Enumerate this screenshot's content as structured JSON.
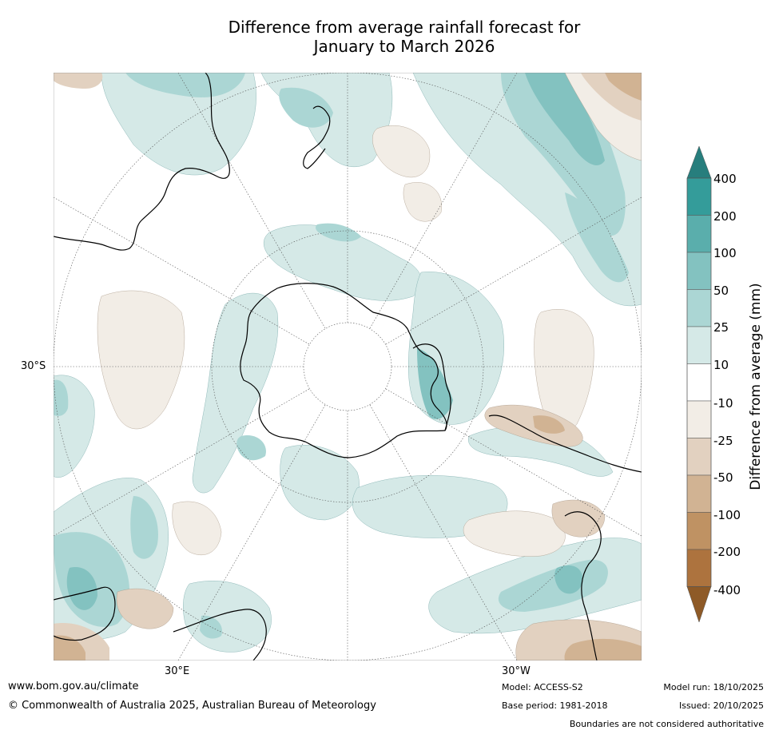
{
  "title": {
    "line1": "Difference from average rainfall forecast for",
    "line2": "January to March 2026"
  },
  "map": {
    "lat_label": "30°S",
    "lon_labels": [
      "30°E",
      "30°W"
    ]
  },
  "colorbar": {
    "label": "Difference from average (mm)",
    "ticks": [
      "400",
      "200",
      "100",
      "50",
      "25",
      "10",
      "-10",
      "-25",
      "-50",
      "-100",
      "-200",
      "-400"
    ],
    "colors": {
      "over_400": "#277e7d",
      "b200_400": "#349c9a",
      "b100_200": "#5aaeac",
      "b50_100": "#83c2c0",
      "b25_50": "#abd6d4",
      "b10_25": "#d5e9e7",
      "neutral": "#ffffff",
      "bn10_n25": "#f2ede6",
      "bn25_n50": "#e2d1c0",
      "bn50_n100": "#d1b393",
      "bn100_n200": "#bf9263",
      "bn200_n400": "#ad733e",
      "under_n400": "#8e5a27"
    }
  },
  "footer": {
    "website": "www.bom.gov.au/climate",
    "copyright": "© Commonwealth of Australia 2025, Australian Bureau of Meteorology",
    "model": "Model: ACCESS-S2",
    "base_period": "Base period: 1981-2018",
    "model_run": "Model run: 18/10/2025",
    "issued": "Issued: 20/10/2025",
    "disclaimer": "Boundaries are not considered authoritative"
  }
}
